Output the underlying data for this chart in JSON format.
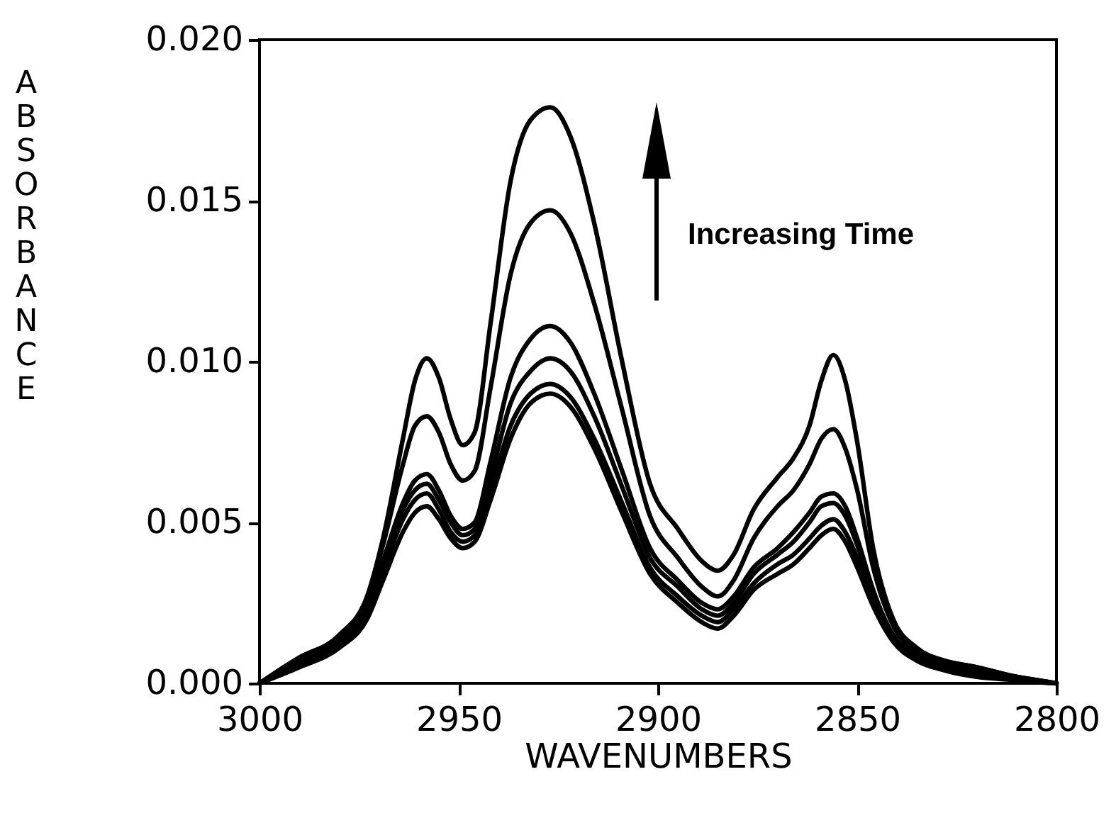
{
  "chart_data": {
    "type": "line",
    "xlabel": "WAVENUMBERS",
    "ylabel": "ABSORBANCE",
    "annotations": [
      "Increasing Time"
    ],
    "xlim": [
      3000,
      2800
    ],
    "xticks": [
      3000,
      2950,
      2900,
      2850,
      2800
    ],
    "ylim": [
      0,
      0.02
    ],
    "yticks": [
      {
        "value": 0,
        "label": "0.000"
      },
      {
        "value": 0.005,
        "label": "0.005"
      },
      {
        "value": 0.01,
        "label": "0.010"
      },
      {
        "value": 0.015,
        "label": "0.015"
      },
      {
        "value": 0.02,
        "label": "0.020"
      }
    ],
    "grid": false,
    "legend": false,
    "marker": "none",
    "line_style": "solid",
    "x": [
      3000,
      2990,
      2980,
      2973,
      2969,
      2964,
      2961,
      2958,
      2955,
      2952,
      2949,
      2946,
      2942,
      2937,
      2932,
      2927,
      2922,
      2916,
      2909,
      2902,
      2895,
      2889,
      2885,
      2881,
      2876,
      2870,
      2866,
      2862,
      2859,
      2856,
      2853,
      2850,
      2846,
      2841,
      2835,
      2828,
      2820,
      2810,
      2800
    ],
    "series": [
      {
        "color": "#000000",
        "values": [
          0,
          0.0008,
          0.0015,
          0.0027,
          0.0045,
          0.0076,
          0.0094,
          0.0101,
          0.0095,
          0.0082,
          0.0074,
          0.0078,
          0.0112,
          0.0156,
          0.0175,
          0.0179,
          0.017,
          0.0143,
          0.01,
          0.0062,
          0.0048,
          0.0038,
          0.0035,
          0.004,
          0.0054,
          0.0064,
          0.007,
          0.008,
          0.0094,
          0.0102,
          0.0094,
          0.0075,
          0.0042,
          0.002,
          0.0011,
          0.0007,
          0.0005,
          0.0002,
          0
        ]
      },
      {
        "color": "#000000",
        "values": [
          0,
          0.0008,
          0.0014,
          0.0026,
          0.0043,
          0.0068,
          0.008,
          0.0083,
          0.0078,
          0.0068,
          0.0063,
          0.0066,
          0.0092,
          0.0127,
          0.0143,
          0.0147,
          0.014,
          0.0118,
          0.0085,
          0.0052,
          0.0039,
          0.003,
          0.0027,
          0.0032,
          0.0045,
          0.0055,
          0.006,
          0.0068,
          0.0076,
          0.0079,
          0.0073,
          0.006,
          0.0036,
          0.0018,
          0.001,
          0.0007,
          0.0005,
          0.0002,
          0
        ]
      },
      {
        "color": "#000000",
        "values": [
          0,
          0.0007,
          0.0013,
          0.0024,
          0.0038,
          0.0056,
          0.0063,
          0.0065,
          0.006,
          0.0052,
          0.0048,
          0.005,
          0.0069,
          0.0095,
          0.0107,
          0.0111,
          0.0106,
          0.009,
          0.0066,
          0.0042,
          0.0032,
          0.0025,
          0.0023,
          0.0027,
          0.0036,
          0.0042,
          0.0047,
          0.0053,
          0.0058,
          0.0059,
          0.0055,
          0.0045,
          0.0029,
          0.0015,
          0.0009,
          0.0006,
          0.0004,
          0.0002,
          0
        ]
      },
      {
        "color": "#000000",
        "values": [
          0,
          0.0007,
          0.0013,
          0.0023,
          0.0037,
          0.0054,
          0.006,
          0.0062,
          0.0057,
          0.005,
          0.0046,
          0.0048,
          0.0064,
          0.0087,
          0.0097,
          0.0101,
          0.0097,
          0.0083,
          0.0061,
          0.0039,
          0.003,
          0.0023,
          0.0021,
          0.0025,
          0.0034,
          0.004,
          0.0044,
          0.005,
          0.0055,
          0.0056,
          0.0052,
          0.0043,
          0.0028,
          0.0015,
          0.0009,
          0.0006,
          0.0004,
          0.0002,
          0
        ]
      },
      {
        "color": "#000000",
        "values": [
          0,
          0.0006,
          0.0012,
          0.0022,
          0.0035,
          0.0051,
          0.0057,
          0.0059,
          0.0054,
          0.0047,
          0.0044,
          0.0046,
          0.006,
          0.008,
          0.009,
          0.0093,
          0.0089,
          0.0076,
          0.0056,
          0.0036,
          0.0027,
          0.0021,
          0.0019,
          0.0023,
          0.0031,
          0.0037,
          0.004,
          0.0045,
          0.0049,
          0.0051,
          0.0047,
          0.0039,
          0.0026,
          0.0014,
          0.0008,
          0.0005,
          0.0003,
          0.0001,
          0
        ]
      },
      {
        "color": "#000000",
        "values": [
          0,
          0.0005,
          0.0011,
          0.002,
          0.0032,
          0.0047,
          0.0053,
          0.0055,
          0.0051,
          0.0045,
          0.0042,
          0.0044,
          0.0057,
          0.0076,
          0.0087,
          0.009,
          0.0086,
          0.0073,
          0.0053,
          0.0034,
          0.0025,
          0.0019,
          0.0017,
          0.0021,
          0.0029,
          0.0034,
          0.0037,
          0.0042,
          0.0046,
          0.0048,
          0.0044,
          0.0036,
          0.0024,
          0.0013,
          0.0007,
          0.0004,
          0.0002,
          0.0001,
          0
        ]
      }
    ]
  }
}
